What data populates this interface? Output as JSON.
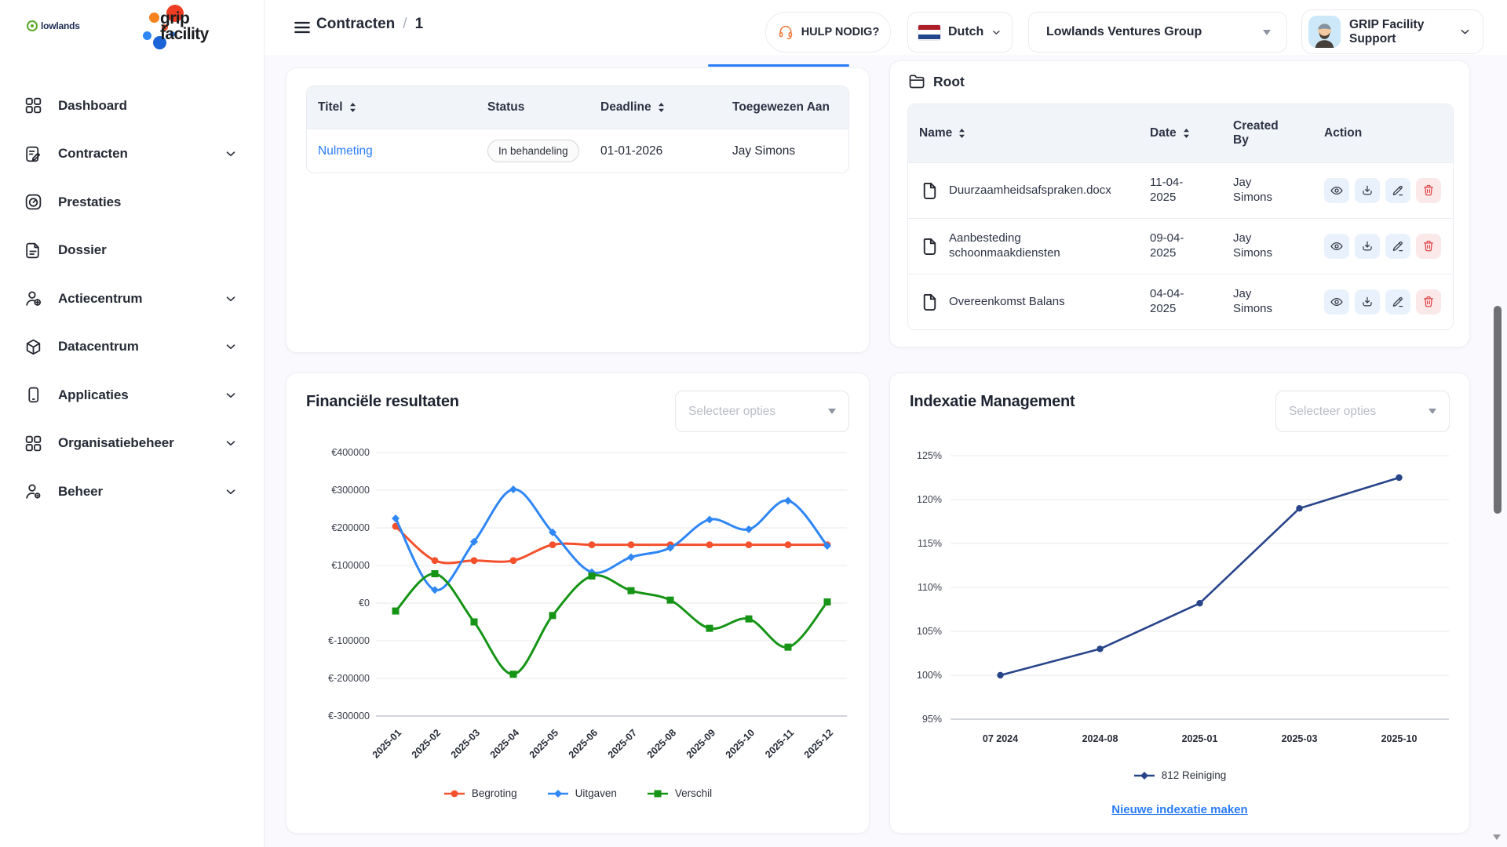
{
  "brand": {
    "tenant_logo": "lowlands",
    "app_logo_line1": "grip",
    "app_logo_line2": "facility"
  },
  "header": {
    "breadcrumb": {
      "section": "Contracten",
      "separator": "/",
      "page": "1"
    },
    "help_button": "HULP NODIG?",
    "language": "Dutch",
    "organization": "Lowlands Ventures Group",
    "user": "GRIP Facility Support"
  },
  "sidebar": {
    "items": [
      {
        "label": "Dashboard",
        "icon": "grid",
        "chevron": false
      },
      {
        "label": "Contracten",
        "icon": "contract",
        "chevron": true
      },
      {
        "label": "Prestaties",
        "icon": "gauge",
        "chevron": false
      },
      {
        "label": "Dossier",
        "icon": "file",
        "chevron": false
      },
      {
        "label": "Actiecentrum",
        "icon": "user-plus",
        "chevron": true
      },
      {
        "label": "Datacentrum",
        "icon": "cube",
        "chevron": true
      },
      {
        "label": "Applicaties",
        "icon": "mobile",
        "chevron": true
      },
      {
        "label": "Organisatiebeheer",
        "icon": "grid",
        "chevron": true
      },
      {
        "label": "Beheer",
        "icon": "user-gear",
        "chevron": true
      }
    ]
  },
  "tables": {
    "tasks": {
      "columns": [
        {
          "label": "Titel",
          "sortable": true
        },
        {
          "label": "Status",
          "sortable": false
        },
        {
          "label": "Deadline",
          "sortable": true
        },
        {
          "label": "Toegewezen Aan",
          "sortable": false
        }
      ],
      "rows": [
        {
          "titel": "Nulmeting",
          "status": "In behandeling",
          "deadline": "01-01-2026",
          "assignee": "Jay Simons"
        }
      ]
    },
    "documents": {
      "section_title": "Root",
      "columns": [
        {
          "label": "Name",
          "sortable": true
        },
        {
          "label": "Date",
          "sortable": true
        },
        {
          "label": "Created By",
          "sortable": false
        },
        {
          "label": "Action",
          "sortable": false
        }
      ],
      "rows": [
        {
          "name": "Duurzaamheidsafspraken.docx",
          "date": "11-04-2025",
          "created_by": "Jay Simons"
        },
        {
          "name": "Aanbesteding schoonmaakdiensten",
          "date": "09-04-2025",
          "created_by": "Jay Simons"
        },
        {
          "name": "Overeenkomst Balans",
          "date": "04-04-2025",
          "created_by": "Jay Simons"
        }
      ]
    }
  },
  "chart_data": [
    {
      "id": "financial",
      "type": "line",
      "title": "Financiële resultaten",
      "filter_placeholder": "Selecteer opties",
      "categories": [
        "2025-01",
        "2025-02",
        "2025-03",
        "2025-04",
        "2025-05",
        "2025-06",
        "2025-07",
        "2025-08",
        "2025-09",
        "2025-10",
        "2025-11",
        "2025-12"
      ],
      "series": [
        {
          "name": "Begroting",
          "color": "#f4502d",
          "marker": "circle",
          "values": [
            204000,
            113000,
            113000,
            113000,
            155000,
            155000,
            155000,
            155000,
            155000,
            155000,
            155000,
            155000
          ]
        },
        {
          "name": "Uitgaven",
          "color": "#2f86f5",
          "marker": "diamond",
          "values": [
            225000,
            35000,
            163000,
            302000,
            188000,
            82000,
            122000,
            147000,
            222000,
            196000,
            272000,
            152000
          ]
        },
        {
          "name": "Verschil",
          "color": "#159415",
          "marker": "square",
          "values": [
            -21000,
            78000,
            -50000,
            -189000,
            -33000,
            72000,
            33000,
            8000,
            -67000,
            -42000,
            -117000,
            3000
          ]
        }
      ],
      "ylim": [
        -300000,
        400000
      ],
      "ytick": 100000,
      "yprefix": "€",
      "grid": true,
      "legend_position": "bottom",
      "curve": "smooth"
    },
    {
      "id": "indexation",
      "type": "line",
      "title": "Indexatie Management",
      "filter_placeholder": "Selecteer opties",
      "categories": [
        "07 2024",
        "2024-08",
        "2025-01",
        "2025-03",
        "2025-10"
      ],
      "series": [
        {
          "name": "812 Reiniging",
          "color": "#28458a",
          "marker": "diamond",
          "values": [
            100,
            103,
            108.2,
            119,
            122.5
          ]
        }
      ],
      "ylim": [
        95,
        125
      ],
      "ytick": 5,
      "ysuffix": "%",
      "grid": true,
      "legend_position": "bottom",
      "curve": "linear",
      "action_link": "Nieuwe indexatie maken"
    }
  ],
  "colors": {
    "accent_blue": "#2b7cf7",
    "table_header_bg": "#f1f5f9",
    "delete_red": "#e0484a"
  }
}
